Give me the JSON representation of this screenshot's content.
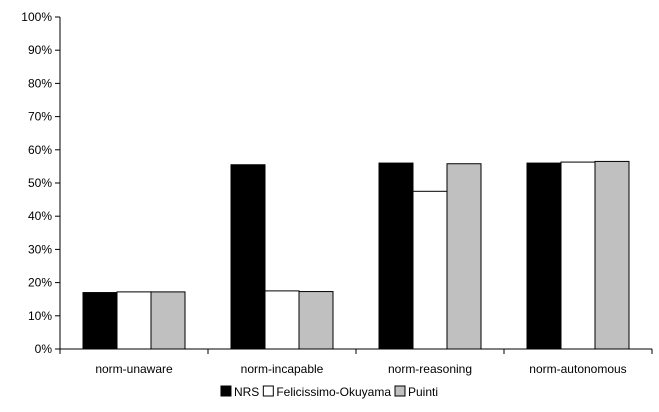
{
  "chart_data": {
    "type": "bar",
    "title": "",
    "xlabel": "",
    "ylabel": "",
    "ylim": [
      0,
      100
    ],
    "yticks": [
      "0%",
      "10%",
      "20%",
      "30%",
      "40%",
      "50%",
      "60%",
      "70%",
      "80%",
      "90%",
      "100%"
    ],
    "grid": false,
    "legend_position": "bottom",
    "categories": [
      "norm-unaware",
      "norm-incapable",
      "norm-reasoning",
      "norm-autonomous"
    ],
    "series": [
      {
        "name": "NRS",
        "color": "#000000",
        "values": [
          17,
          55.5,
          56,
          56
        ]
      },
      {
        "name": "Felicissimo-Okuyama",
        "color": "#ffffff",
        "values": [
          17.2,
          17.5,
          47.5,
          56.3
        ]
      },
      {
        "name": "Puinti",
        "color": "#c0c0c0",
        "values": [
          17.2,
          17.3,
          55.8,
          56.5
        ]
      }
    ]
  }
}
